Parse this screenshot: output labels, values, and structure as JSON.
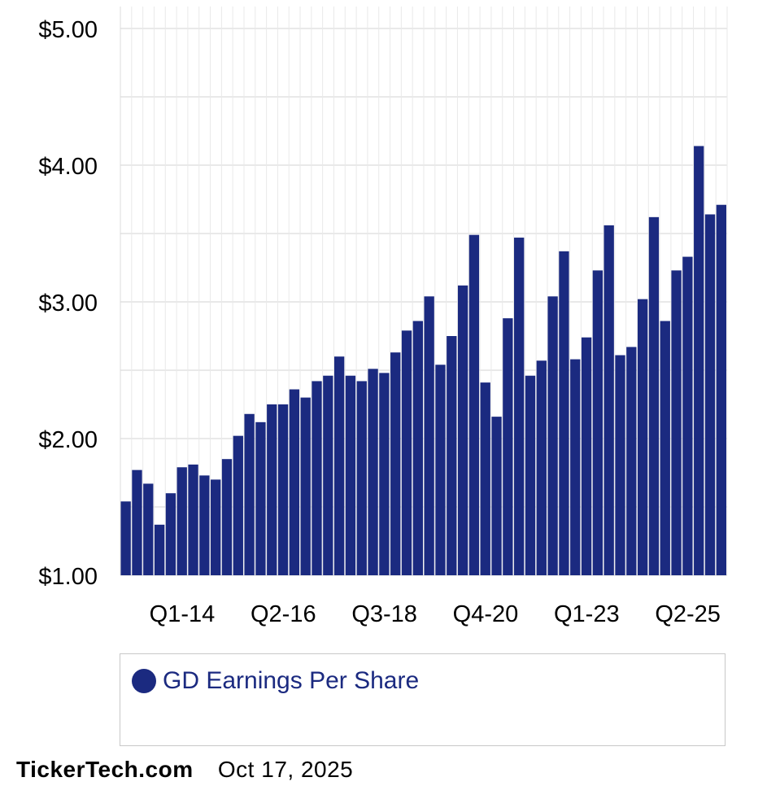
{
  "chart_data": {
    "type": "bar",
    "ylim": [
      1,
      5
    ],
    "y_ticks": [
      "$1.00",
      "$2.00",
      "$3.00",
      "$4.00",
      "$5.00"
    ],
    "x_tick_labels": [
      {
        "label": "Q1-14",
        "index": 5
      },
      {
        "label": "Q2-16",
        "index": 14
      },
      {
        "label": "Q3-18",
        "index": 23
      },
      {
        "label": "Q4-20",
        "index": 32
      },
      {
        "label": "Q1-23",
        "index": 41
      },
      {
        "label": "Q2-25",
        "index": 50
      }
    ],
    "values": [
      1.54,
      1.77,
      1.67,
      1.37,
      1.6,
      1.79,
      1.81,
      1.73,
      1.7,
      1.85,
      2.02,
      2.18,
      2.12,
      2.25,
      2.25,
      2.36,
      2.3,
      2.42,
      2.46,
      2.6,
      2.46,
      2.42,
      2.51,
      2.48,
      2.63,
      2.79,
      2.86,
      3.04,
      2.54,
      2.75,
      3.12,
      3.49,
      2.41,
      2.16,
      2.88,
      3.47,
      2.46,
      2.57,
      3.04,
      3.37,
      2.58,
      2.74,
      3.23,
      3.56,
      2.61,
      2.67,
      3.02,
      3.62,
      2.86,
      3.23,
      3.33,
      4.14,
      3.64,
      3.71
    ],
    "grid": true,
    "legend_position": "bottom",
    "series_name": "GD Earnings Per Share"
  },
  "colors": {
    "bar": "#1b2a80",
    "grid": "#e9e9e9"
  },
  "legend": {
    "label": "GD Earnings Per Share"
  },
  "footer": {
    "source": "TickerTech.com",
    "date": "Oct 17, 2025"
  }
}
